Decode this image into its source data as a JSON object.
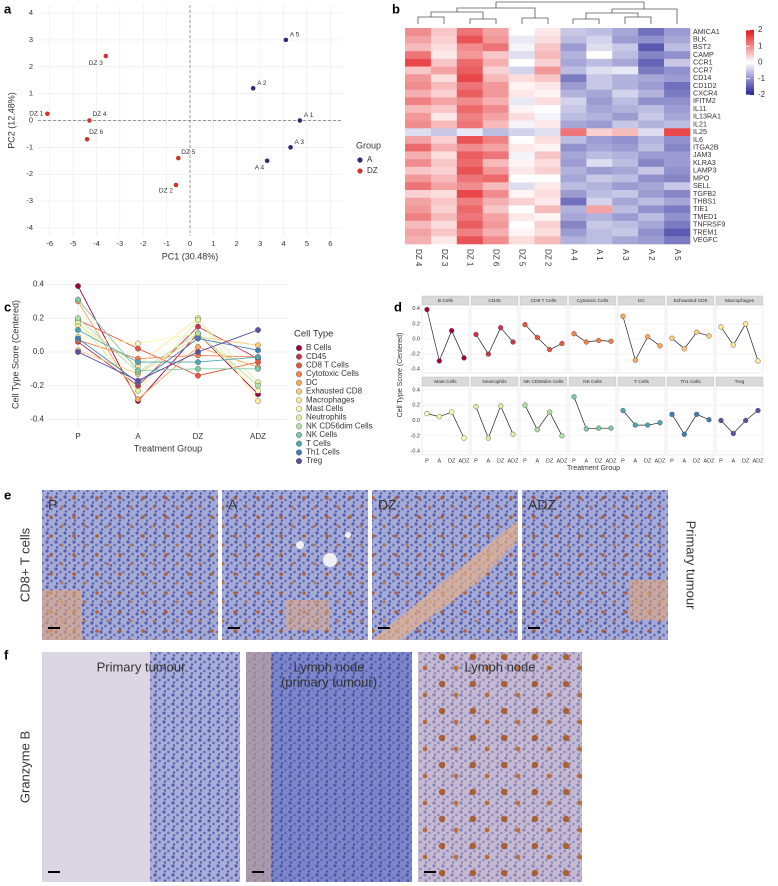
{
  "panel_labels": [
    "a",
    "b",
    "c",
    "d",
    "e",
    "f"
  ],
  "chart_data": [
    {
      "type": "scatter",
      "xlabel": "PC1 (30.48%)",
      "ylabel": "PC2 (12.48%)",
      "xlim": [
        -6.5,
        6.5
      ],
      "ylim": [
        -4.3,
        4.3
      ],
      "xticks": [
        -6,
        -5,
        -4,
        -3,
        -2,
        -1,
        0,
        1,
        2,
        3,
        4,
        5,
        6
      ],
      "yticks": [
        -4,
        -3,
        -2,
        -1,
        0,
        1,
        2,
        3,
        4
      ],
      "hline": 0,
      "vline": 0,
      "grid": true,
      "legend_title": "Group",
      "series": [
        {
          "name": "A",
          "color": "#2b2d6e",
          "x": [
            4.7,
            2.7,
            4.3,
            3.3,
            4.1
          ],
          "y": [
            0.0,
            1.2,
            -1.0,
            -1.5,
            3.0
          ],
          "point_labels": [
            "A 1",
            "A 2",
            "A 3",
            "A 4",
            "A 5"
          ]
        },
        {
          "name": "DZ",
          "color": "#d0342c",
          "x": [
            -6.1,
            -0.6,
            -3.6,
            -4.3,
            -0.5,
            -4.4
          ],
          "y": [
            0.25,
            -2.4,
            2.4,
            0.0,
            -1.4,
            -0.7
          ],
          "point_labels": [
            "DZ 1",
            "DZ 2",
            "DZ 3",
            "DZ 4",
            "DZ 5",
            "DZ 6"
          ]
        }
      ]
    },
    {
      "type": "heatmap",
      "columns": [
        "DZ 4",
        "DZ 3",
        "DZ 1",
        "DZ 6",
        "DZ 5",
        "DZ 2",
        "A 4",
        "A 1",
        "A 3",
        "A 2",
        "A 5"
      ],
      "rows": [
        "AMICA1",
        "BLK",
        "BST2",
        "CAMP",
        "CCR1",
        "CCR7",
        "CD14",
        "CD1D2",
        "CXCR4",
        "IFITM2",
        "IL11",
        "IL13RA1",
        "IL21",
        "IL25",
        "IL6",
        "ITGA2B",
        "JAM3",
        "KLRA3",
        "LAMP3",
        "MPO",
        "SELL",
        "TGFB2",
        "THBS1",
        "TIE1",
        "TMED1",
        "TNFRSF9",
        "TREM1",
        "VEGFC"
      ],
      "values": [
        [
          1.0,
          0.5,
          1.2,
          0.8,
          0.0,
          0.2,
          -0.5,
          -0.6,
          -0.8,
          -1.3,
          -0.9
        ],
        [
          0.8,
          0.4,
          1.5,
          0.9,
          -0.2,
          0.3,
          -0.6,
          -0.4,
          -0.9,
          -1.0,
          -0.8
        ],
        [
          0.6,
          0.3,
          1.0,
          1.2,
          -0.1,
          0.5,
          -0.9,
          -0.3,
          -0.5,
          -1.5,
          -0.6
        ],
        [
          1.2,
          0.2,
          0.9,
          0.5,
          -0.3,
          0.6,
          -0.7,
          0.0,
          -0.6,
          -1.1,
          -1.0
        ],
        [
          1.6,
          0.5,
          1.3,
          0.7,
          0.0,
          0.4,
          -0.8,
          -0.6,
          -0.8,
          -1.4,
          -0.5
        ],
        [
          0.5,
          0.8,
          1.4,
          0.4,
          -0.4,
          0.9,
          -0.6,
          -0.3,
          -0.2,
          -1.2,
          -1.0
        ],
        [
          0.9,
          0.3,
          1.6,
          0.6,
          0.3,
          0.5,
          -1.2,
          -0.5,
          -0.7,
          -0.8,
          -0.9
        ],
        [
          1.0,
          0.6,
          1.2,
          0.9,
          0.1,
          0.2,
          -0.9,
          -0.5,
          -0.7,
          -0.9,
          -1.3
        ],
        [
          0.7,
          0.4,
          1.4,
          0.9,
          0.2,
          0.1,
          -0.7,
          -0.8,
          -0.4,
          -0.7,
          -1.2
        ],
        [
          1.1,
          0.8,
          1.0,
          0.7,
          -0.2,
          0.3,
          -0.4,
          -0.9,
          -0.6,
          -1.0,
          -1.0
        ],
        [
          0.6,
          0.5,
          1.3,
          1.0,
          0.1,
          0.0,
          -0.5,
          -0.8,
          -0.7,
          -0.6,
          -0.9
        ],
        [
          0.9,
          0.2,
          1.1,
          0.8,
          0.3,
          -0.1,
          -0.6,
          -0.7,
          -0.9,
          -0.5,
          -0.8
        ],
        [
          1.0,
          0.6,
          1.2,
          0.6,
          -0.1,
          0.2,
          -0.8,
          -0.9,
          -0.5,
          -0.7,
          -0.6
        ],
        [
          -0.3,
          -0.5,
          -0.2,
          -0.6,
          -0.4,
          -0.3,
          1.2,
          0.4,
          0.6,
          -0.3,
          1.6
        ],
        [
          0.8,
          0.4,
          1.5,
          1.1,
          0.0,
          0.3,
          -0.6,
          -0.9,
          -1.0,
          -0.7,
          -1.0
        ],
        [
          1.3,
          0.7,
          1.0,
          0.8,
          0.2,
          0.1,
          -1.0,
          -0.8,
          -0.9,
          -0.6,
          -1.1
        ],
        [
          0.7,
          0.3,
          1.4,
          1.2,
          -0.1,
          0.5,
          -0.8,
          -0.6,
          -0.7,
          -0.9,
          -0.9
        ],
        [
          1.0,
          0.5,
          1.3,
          0.6,
          0.1,
          0.3,
          -0.9,
          -0.3,
          -0.6,
          -1.1,
          -0.9
        ],
        [
          0.5,
          0.4,
          1.5,
          0.9,
          0.2,
          0.4,
          -0.7,
          -0.9,
          -0.8,
          -0.5,
          -1.0
        ],
        [
          0.9,
          0.6,
          1.2,
          1.3,
          0.0,
          0.0,
          -0.8,
          -0.5,
          -0.6,
          -1.0,
          -1.1
        ],
        [
          1.2,
          0.8,
          1.0,
          0.6,
          -0.3,
          0.2,
          -0.6,
          -0.7,
          -0.9,
          -0.8,
          -0.5
        ],
        [
          0.4,
          0.3,
          1.6,
          1.0,
          0.1,
          0.3,
          -0.9,
          -0.6,
          -0.5,
          -0.9,
          -1.1
        ],
        [
          0.8,
          0.5,
          1.1,
          0.7,
          0.4,
          0.2,
          -1.3,
          -0.4,
          -0.8,
          -0.6,
          -0.8
        ],
        [
          0.9,
          0.4,
          1.3,
          0.5,
          0.0,
          0.6,
          -0.7,
          0.8,
          -0.6,
          -1.0,
          -1.2
        ],
        [
          1.1,
          0.6,
          1.2,
          0.8,
          0.2,
          0.1,
          -0.8,
          -0.7,
          -0.9,
          -0.6,
          -1.0
        ],
        [
          0.6,
          0.3,
          1.4,
          0.9,
          0.0,
          0.4,
          -1.1,
          -0.5,
          -0.6,
          -0.8,
          -1.2
        ],
        [
          0.8,
          0.5,
          1.1,
          0.7,
          0.1,
          0.3,
          -0.9,
          -0.6,
          -0.5,
          -1.0,
          -1.5
        ],
        [
          0.7,
          0.2,
          1.5,
          1.0,
          0.3,
          0.6,
          -0.7,
          -0.6,
          -0.8,
          -0.9,
          -1.2
        ]
      ],
      "colormap": [
        "#23239a",
        "#ffffff",
        "#e3191c"
      ],
      "clim": [
        -2,
        2
      ],
      "colorbar_ticks": [
        2,
        1,
        0,
        -1,
        -2
      ]
    },
    {
      "type": "line",
      "categories": [
        "P",
        "A",
        "DZ",
        "ADZ"
      ],
      "xlabel": "Treatment Group",
      "ylabel": "Cell Type Score (Centered)",
      "ylim": [
        -0.45,
        0.42
      ],
      "yticks": [
        -0.4,
        -0.2,
        {
          "value": 0,
          "label": "0.0"
        },
        0.2,
        0.4
      ],
      "grid": true,
      "legend_title": "Cell Type",
      "series": [
        {
          "name": "B Cells",
          "color": "#9e0142",
          "values": [
            0.39,
            -0.29,
            0.11,
            -0.25
          ]
        },
        {
          "name": "CD45",
          "color": "#c9334d",
          "values": [
            0.06,
            -0.2,
            0.15,
            -0.04
          ]
        },
        {
          "name": "CD8 T Cells",
          "color": "#e8553f",
          "values": [
            0.19,
            0.02,
            -0.14,
            -0.06
          ]
        },
        {
          "name": "Cytotoxic Cells",
          "color": "#f67f4b",
          "values": [
            0.07,
            -0.04,
            -0.02,
            -0.03
          ]
        },
        {
          "name": "DC",
          "color": "#fba85d",
          "values": [
            0.3,
            -0.28,
            0.03,
            -0.09
          ]
        },
        {
          "name": "Exhausted CD8",
          "color": "#fdcb7a",
          "values": [
            0.01,
            -0.13,
            0.09,
            0.04
          ]
        },
        {
          "name": "Macrophages",
          "color": "#fee899",
          "values": [
            0.16,
            -0.08,
            0.2,
            -0.29
          ]
        },
        {
          "name": "Mast Cells",
          "color": "#f7faaf",
          "values": [
            0.09,
            0.05,
            0.11,
            -0.23
          ]
        },
        {
          "name": "Neutrophils",
          "color": "#ddf1a2",
          "values": [
            0.18,
            -0.23,
            0.19,
            -0.18
          ]
        },
        {
          "name": "NK CD56dim Cells",
          "color": "#b1dfa3",
          "values": [
            0.2,
            -0.12,
            0.11,
            -0.2
          ]
        },
        {
          "name": "NK Cells",
          "color": "#7dcba4",
          "values": [
            0.31,
            -0.11,
            -0.1,
            -0.1
          ]
        },
        {
          "name": "T Cells",
          "color": "#4ea6b1",
          "values": [
            0.13,
            -0.06,
            -0.06,
            -0.03
          ]
        },
        {
          "name": "Th1 Cells",
          "color": "#3b7eb8",
          "values": [
            0.08,
            -0.18,
            0.08,
            0.01
          ]
        },
        {
          "name": "Treg",
          "color": "#5e4fa2",
          "values": [
            0.0,
            -0.17,
            0.0,
            0.13
          ]
        }
      ]
    },
    {
      "type": "small_multiples",
      "categories": [
        "P",
        "A",
        "DZ",
        "ADZ"
      ],
      "xlabel": "Treatment Group",
      "ylabel": "Cell Type Score (Centered)",
      "ylim": [
        -0.45,
        0.45
      ],
      "yticks": [
        -0.4,
        -0.2,
        {
          "value": 0,
          "label": "0.0"
        },
        0.2,
        0.4
      ],
      "columns": 7
    }
  ],
  "images": {
    "e": {
      "row_label": "CD8+ T cells",
      "side_label": "Primary tumour",
      "panels": [
        "P",
        "A",
        "DZ",
        "ADZ"
      ]
    },
    "f": {
      "row_label": "Granzyme B",
      "panels": [
        [
          "Primary tumour"
        ],
        [
          "Lymph node",
          "(primary tumour)"
        ],
        [
          "Lymph node"
        ]
      ]
    }
  }
}
